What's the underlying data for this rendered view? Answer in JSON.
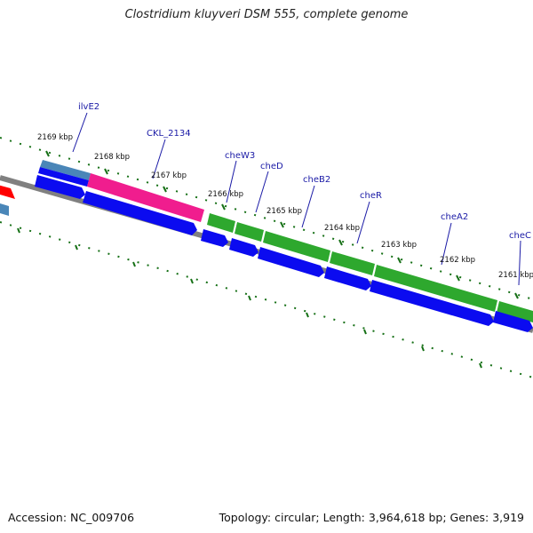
{
  "title": "Clostridium kluyveri DSM 555, complete genome",
  "footer": {
    "accession": "Accession: NC_009706",
    "summary": "Topology: circular; Length: 3,964,618 bp; Genes: 3,919"
  },
  "colors": {
    "forward_gene": "#0b0bf0",
    "hypothetical": "#f01d8e",
    "chemotaxis": "#2ea82e",
    "ilv": "#4a86b8",
    "tick": "#167016",
    "backbone": "#777777",
    "red_feature": "#ff0000",
    "label": "#1a1aa6"
  },
  "kbp_labels": [
    "2169 kbp",
    "2168 kbp",
    "2167 kbp",
    "2166 kbp",
    "2165 kbp",
    "2164 kbp",
    "2163 kbp",
    "2162 kbp",
    "2161 kbp"
  ],
  "gene_labels": [
    "ilvE2",
    "CKL_2134",
    "cheW3",
    "cheD",
    "cheB2",
    "cheR",
    "cheA2",
    "cheC"
  ]
}
